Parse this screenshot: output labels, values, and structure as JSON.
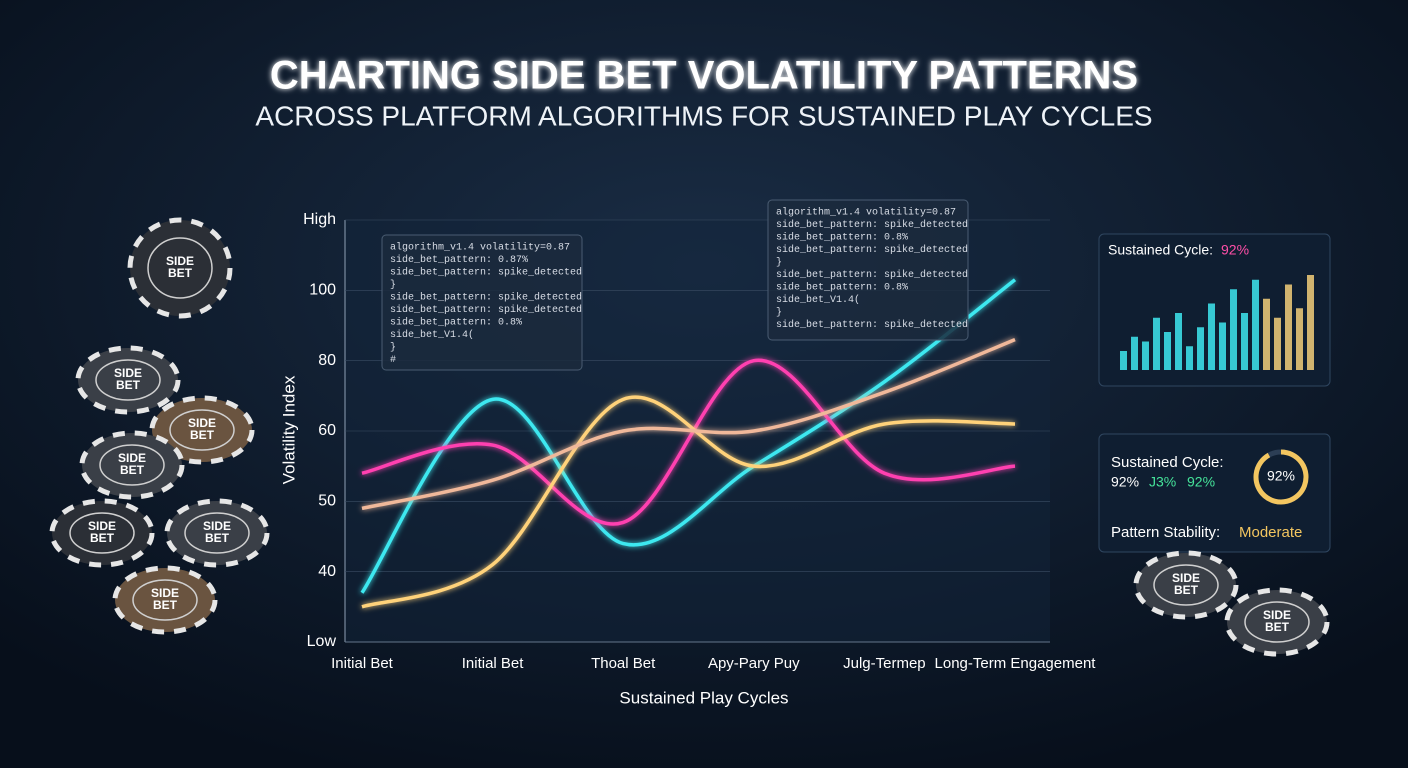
{
  "chart_data": {
    "type": "line",
    "title": "CHARTING SIDE BET VOLATILITY PATTERNS",
    "subtitle": "ACROSS PLATFORM ALGORITHMS FOR SUSTAINED PLAY CYCLES",
    "xlabel": "Sustained Play Cycles",
    "ylabel": "Volatility Index",
    "categories": [
      "Initial Bet",
      "Initial Bet",
      "Thoal Bet",
      "Apy-Pary Puy",
      "Julg-Termep",
      "Long-Term Engagement"
    ],
    "ylim": [
      30,
      120
    ],
    "yticks": [
      {
        "value": 30,
        "label": "Low"
      },
      40,
      50,
      60,
      80,
      100,
      {
        "value": 120,
        "label": "High"
      }
    ],
    "series": [
      {
        "name": "cyan",
        "color": "#3ee8f0",
        "values": [
          37,
          69,
          44,
          55,
          74,
          103
        ]
      },
      {
        "name": "magenta",
        "color": "#ff3fb0",
        "values": [
          54,
          58,
          47,
          80,
          54,
          55
        ]
      },
      {
        "name": "gold",
        "color": "#ffd27a",
        "values": [
          35,
          41,
          69,
          55,
          62,
          62
        ]
      },
      {
        "name": "peach",
        "color": "#f0b89a",
        "values": [
          49,
          53,
          60,
          60,
          71,
          86
        ]
      }
    ]
  },
  "code_panels": [
    [
      "algorithm_v1.4 volatility=0.87",
      "side_bet_pattern: 0.87%",
      "side_bet_pattern: spike_detected",
      "}",
      "side_bet_pattern: spike_detected",
      "side_bet_pattern: spike_detected",
      "side_bet_pattern: 0.8%",
      "side_bet_V1.4(",
      "}",
      "#"
    ],
    [
      "algorithm_v1.4 volatility=0.87",
      "side_bet_pattern: spike_detected",
      "side_bet_pattern: 0.8%",
      "side_bet_pattern: spike_detected",
      "}",
      "side_bet_pattern: spike_detected",
      "side_bet_pattern: 0.8%",
      "side_bet_V1.4(",
      "}",
      "side_bet_pattern: spike_detected"
    ]
  ],
  "side_panel": {
    "top_label": "Sustained Cycle:",
    "top_value": "92%",
    "bars": [
      20,
      35,
      30,
      55,
      40,
      60,
      25,
      45,
      70,
      50,
      85,
      60,
      95,
      75,
      55,
      90,
      65,
      100
    ],
    "cycle_label": "Sustained Cycle:",
    "cycle_values": [
      "92%",
      "J3%",
      "92%"
    ],
    "gauge": {
      "value": 92,
      "label": "92%"
    },
    "stability_label": "Pattern Stability:",
    "stability_value": "Moderate"
  },
  "chip_text": [
    "SIDE",
    "BET"
  ]
}
